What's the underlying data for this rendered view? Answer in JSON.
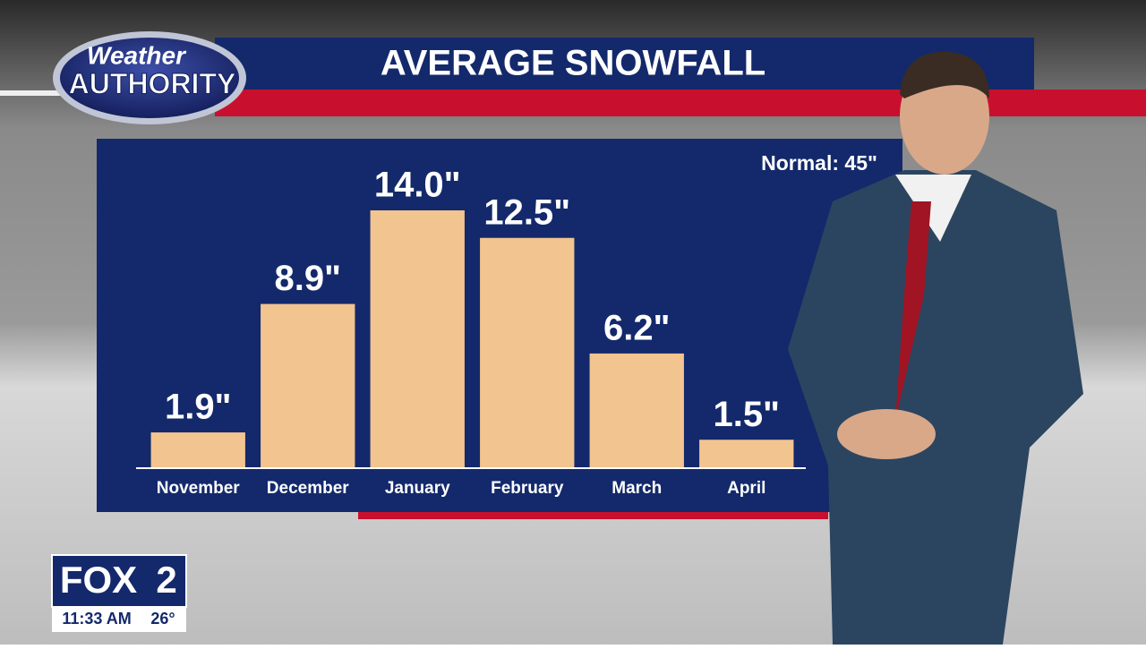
{
  "chart_data": {
    "type": "bar",
    "title": "AVERAGE SNOWFALL",
    "annotation": "Normal: 45\"",
    "categories": [
      "November",
      "December",
      "January",
      "February",
      "March",
      "April"
    ],
    "values": [
      1.9,
      8.9,
      14.0,
      12.5,
      6.2,
      1.5
    ],
    "value_labels": [
      "1.9\"",
      "8.9\"",
      "14.0\"",
      "12.5\"",
      "6.2\"",
      "1.5\""
    ],
    "color": "#f2c48f"
  },
  "logo": {
    "line1": "Weather",
    "line2": "AUTHORITY"
  },
  "station": {
    "name": "FOX",
    "number": "2",
    "time": "11:33 AM",
    "temperature": "26°"
  }
}
